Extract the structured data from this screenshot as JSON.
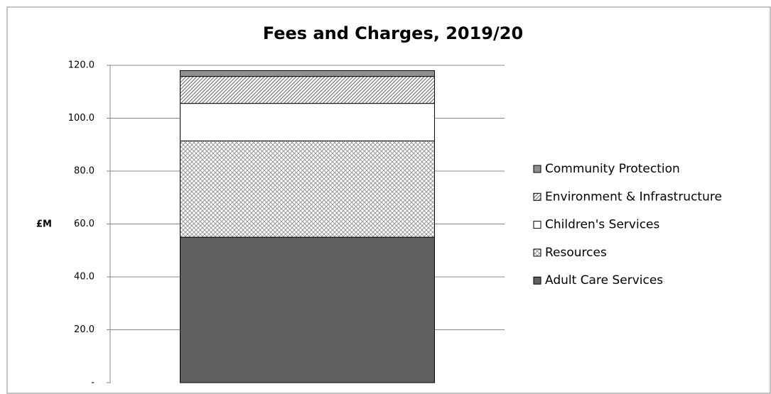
{
  "chart_data": {
    "type": "stacked_bar",
    "title": "Fees and Charges, 2019/20",
    "y_label": "£M",
    "categories": [
      null
    ],
    "series": [
      {
        "name": "Adult Care Services",
        "color": "#606060",
        "pattern": "solid",
        "values": [
          55.0
        ]
      },
      {
        "name": "Resources",
        "color": "#b0b0b0",
        "pattern": "dots",
        "values": [
          36.4
        ]
      },
      {
        "name": "Children's Services",
        "color": "#ffffff",
        "pattern": "solid",
        "values": [
          14.2
        ]
      },
      {
        "name": "Environment & Infrastructure",
        "color": "#808080",
        "pattern": "diagonal",
        "values": [
          10.2
        ]
      },
      {
        "name": "Community Protection",
        "color": "#909090",
        "pattern": "solid",
        "values": [
          2.2
        ]
      }
    ],
    "ylim": [
      0,
      120
    ],
    "yticks": [
      {
        "value": 0,
        "label": "-"
      },
      {
        "value": 20,
        "label": "20.0"
      },
      {
        "value": 40,
        "label": "40.0"
      },
      {
        "value": 60,
        "label": "60.0"
      },
      {
        "value": 80,
        "label": "80.0"
      },
      {
        "value": 100,
        "label": "100.0"
      },
      {
        "value": 120,
        "label": "120.0"
      }
    ],
    "grid": true,
    "legend": "right"
  }
}
